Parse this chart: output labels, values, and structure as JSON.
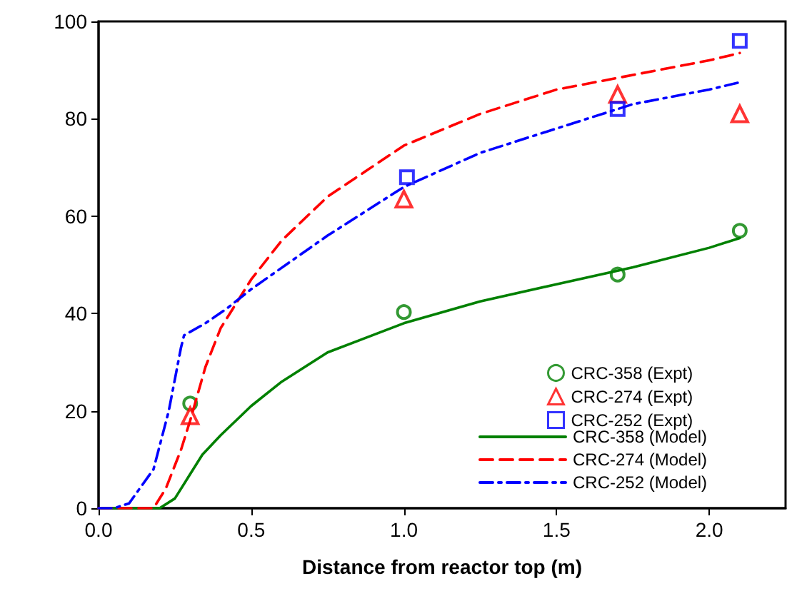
{
  "chart_data": {
    "type": "line",
    "xlabel": "Distance from reactor top (m)",
    "xlim": [
      0,
      2.25
    ],
    "xticks": [
      {
        "value": 0,
        "label": "0.0"
      },
      0.5,
      {
        "value": 1,
        "label": "1.0"
      },
      1.5,
      {
        "value": 2,
        "label": "2.0"
      }
    ],
    "ylim": [
      0,
      100
    ],
    "yticks": [
      0,
      20,
      40,
      60,
      80,
      100
    ],
    "grid": false,
    "legend": "bottom right",
    "series": [
      {
        "name": "CRC-358 (Expt)",
        "type": "scatter",
        "marker": "circle",
        "color": "#008000",
        "x": [
          0.3,
          1.0,
          1.7,
          2.1
        ],
        "values": [
          21.5,
          40.3,
          48,
          57
        ]
      },
      {
        "name": "CRC-274 (Expt)",
        "type": "scatter",
        "marker": "triangle",
        "color": "#ff0000",
        "x": [
          0.3,
          1.0,
          1.7,
          2.1
        ],
        "values": [
          19,
          63.5,
          85,
          81
        ]
      },
      {
        "name": "CRC-252 (Expt)",
        "type": "scatter",
        "marker": "square",
        "color": "#0000ff",
        "x": [
          1.01,
          1.7,
          2.1
        ],
        "values": [
          68,
          82,
          96
        ]
      },
      {
        "name": "CRC-358 (Model)",
        "type": "line",
        "line_style": "solid",
        "color": "#008000",
        "x": [
          0,
          0.2,
          0.25,
          0.3,
          0.34,
          0.4,
          0.5,
          0.6,
          0.75,
          1.0,
          1.25,
          1.5,
          1.75,
          2.0,
          2.1
        ],
        "values": [
          0,
          0,
          2,
          7,
          11,
          15,
          21,
          26,
          32,
          38,
          42.5,
          46,
          49.5,
          53.5,
          55.5
        ]
      },
      {
        "name": "CRC-274 (Model)",
        "type": "line",
        "line_style": "dashed",
        "color": "#ff0000",
        "x": [
          0,
          0.18,
          0.22,
          0.27,
          0.3,
          0.35,
          0.4,
          0.5,
          0.6,
          0.75,
          1.0,
          1.25,
          1.5,
          1.75,
          2.0,
          2.1
        ],
        "values": [
          0,
          0,
          4,
          12,
          18,
          29,
          37,
          47,
          55,
          64,
          74.5,
          81,
          86,
          89,
          92,
          93.5
        ]
      },
      {
        "name": "CRC-252 (Model)",
        "type": "line",
        "line_style": "dashdot",
        "color": "#0000ff",
        "x": [
          0,
          0.05,
          0.1,
          0.18,
          0.23,
          0.27,
          0.28,
          0.35,
          0.42,
          0.5,
          0.75,
          1.0,
          1.25,
          1.5,
          1.75,
          2.0,
          2.1
        ],
        "values": [
          0,
          0,
          1,
          8,
          20,
          33,
          35.5,
          38,
          41,
          45,
          56,
          66,
          73,
          78,
          83,
          86,
          87.5
        ]
      }
    ]
  }
}
